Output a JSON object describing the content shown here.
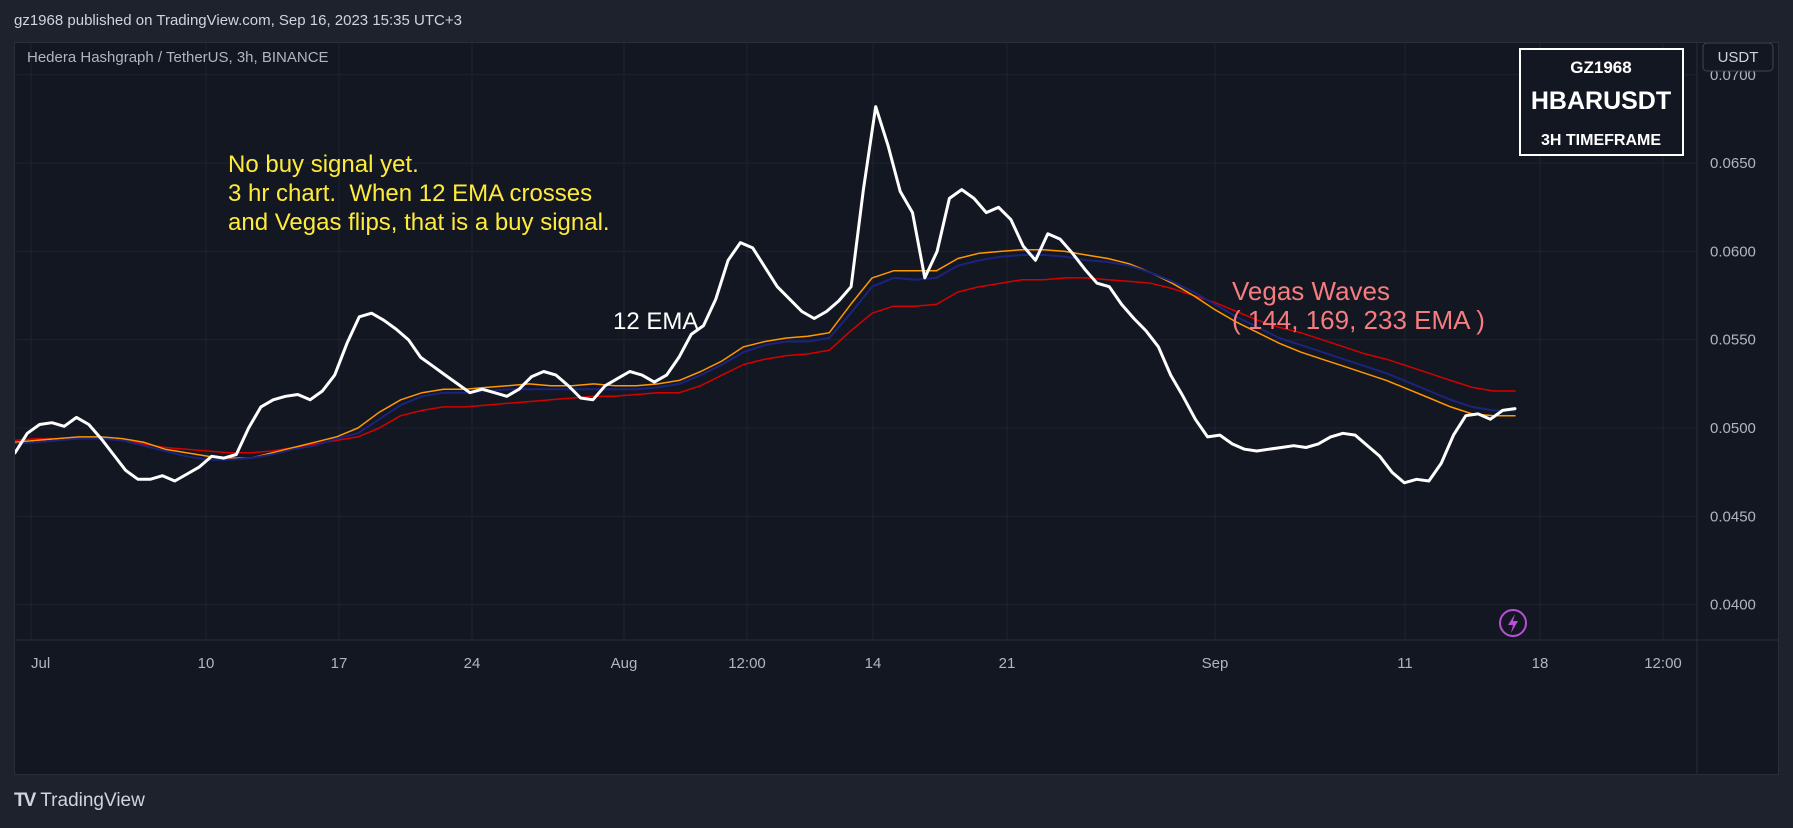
{
  "publisher_line": "gz1968 published on TradingView.com, Sep 16, 2023 15:35 UTC+3",
  "brand": {
    "logo": "TV",
    "name": "TradingView"
  },
  "colors": {
    "background": "#131722",
    "grid": "#1f2330",
    "price": "#ffffff",
    "ema144": "#ff9800",
    "ema169": "#1a237e",
    "ema233": "#d50000",
    "note_yellow": "#ffeb3b",
    "vegas_label": "#f77c80"
  },
  "chart_data": {
    "type": "line",
    "title": "Hedera Hashgraph / TetherUS, 3h, BINANCE",
    "currency_button": "USDT",
    "ylim": [
      0.038,
      0.0718
    ],
    "y_ticks": [
      "0.0700",
      "0.0650",
      "0.0600",
      "0.0550",
      "0.0500",
      "0.0450",
      "0.0400"
    ],
    "y_tick_values": [
      0.07,
      0.065,
      0.06,
      0.055,
      0.05,
      0.045,
      0.04
    ],
    "x_ticks": [
      "Jul",
      "10",
      "17",
      "24",
      "Aug",
      "12:00",
      "14",
      "21",
      "Sep",
      "11",
      "18",
      "12:00"
    ],
    "grid": true,
    "annotation_box": {
      "line1": "GZ1968",
      "line2": "HBARUSDT",
      "line3": "3H TIMEFRAME"
    },
    "notes": {
      "buy_signal": [
        "No buy signal yet.",
        "3 hr chart.  When 12 EMA crosses",
        "and Vegas flips, that is a buy signal."
      ],
      "ema12_label": "12 EMA",
      "vegas_label": [
        "Vegas Waves",
        "( 144, 169, 233 EMA )"
      ]
    },
    "series": [
      {
        "name": "12 EMA",
        "values": [
          0.0486,
          0.0497,
          0.0502,
          0.0503,
          0.0501,
          0.0506,
          0.0502,
          0.0494,
          0.0485,
          0.0476,
          0.0471,
          0.0471,
          0.0473,
          0.047,
          0.0474,
          0.0478,
          0.0484,
          0.0483,
          0.0485,
          0.05,
          0.0512,
          0.0516,
          0.0518,
          0.0519,
          0.0516,
          0.0521,
          0.053,
          0.0548,
          0.0563,
          0.0565,
          0.0561,
          0.0556,
          0.055,
          0.054,
          0.0535,
          0.053,
          0.0525,
          0.052,
          0.0522,
          0.052,
          0.0518,
          0.0522,
          0.0529,
          0.0532,
          0.053,
          0.0524,
          0.0517,
          0.0516,
          0.0524,
          0.0528,
          0.0532,
          0.053,
          0.0526,
          0.053,
          0.054,
          0.0553,
          0.0558,
          0.0573,
          0.0595,
          0.0605,
          0.0602,
          0.0591,
          0.058,
          0.0573,
          0.0566,
          0.0562,
          0.0566,
          0.0572,
          0.058,
          0.0635,
          0.0682,
          0.066,
          0.0634,
          0.0622,
          0.0585,
          0.06,
          0.063,
          0.0635,
          0.063,
          0.0622,
          0.0625,
          0.0618,
          0.0603,
          0.0595,
          0.061,
          0.0607,
          0.0599,
          0.059,
          0.0582,
          0.058,
          0.057,
          0.0562,
          0.0555,
          0.0546,
          0.053,
          0.0518,
          0.0505,
          0.0495,
          0.0496,
          0.0491,
          0.0488,
          0.0487,
          0.0488,
          0.0489,
          0.049,
          0.0489,
          0.0491,
          0.0495,
          0.0497,
          0.0496,
          0.049,
          0.0484,
          0.0475,
          0.0469,
          0.0471,
          0.047,
          0.048,
          0.0496,
          0.0507,
          0.0508,
          0.0505,
          0.051,
          0.0511
        ]
      },
      {
        "name": "144 EMA",
        "values": [
          0.0492,
          0.0493,
          0.0494,
          0.0495,
          0.0495,
          0.0494,
          0.0492,
          0.0488,
          0.0486,
          0.0484,
          0.0483,
          0.0483,
          0.0486,
          0.0489,
          0.0492,
          0.0495,
          0.05,
          0.0509,
          0.0516,
          0.052,
          0.0522,
          0.0522,
          0.0523,
          0.0524,
          0.0525,
          0.0524,
          0.0524,
          0.0525,
          0.0524,
          0.0524,
          0.0525,
          0.0527,
          0.0532,
          0.0538,
          0.0546,
          0.0549,
          0.0551,
          0.0552,
          0.0554,
          0.057,
          0.0585,
          0.0589,
          0.0589,
          0.0589,
          0.0596,
          0.0599,
          0.06,
          0.0601,
          0.0601,
          0.06,
          0.0598,
          0.0596,
          0.0593,
          0.0588,
          0.0582,
          0.0575,
          0.0567,
          0.056,
          0.0554,
          0.0548,
          0.0543,
          0.0539,
          0.0535,
          0.0531,
          0.0527,
          0.0522,
          0.0517,
          0.0512,
          0.0508,
          0.0507,
          0.0507
        ]
      },
      {
        "name": "169 EMA",
        "values": [
          0.0491,
          0.0492,
          0.0493,
          0.0494,
          0.0494,
          0.0493,
          0.049,
          0.0487,
          0.0484,
          0.0482,
          0.0482,
          0.0483,
          0.0485,
          0.0488,
          0.049,
          0.0494,
          0.0497,
          0.0505,
          0.0513,
          0.0518,
          0.052,
          0.052,
          0.0521,
          0.0522,
          0.0522,
          0.0522,
          0.0522,
          0.0522,
          0.0522,
          0.0522,
          0.0523,
          0.0525,
          0.053,
          0.0536,
          0.0543,
          0.0547,
          0.0549,
          0.0549,
          0.0551,
          0.0565,
          0.058,
          0.0585,
          0.0584,
          0.0585,
          0.0592,
          0.0595,
          0.0597,
          0.0598,
          0.0598,
          0.0597,
          0.0595,
          0.0594,
          0.0592,
          0.0588,
          0.0583,
          0.0577,
          0.057,
          0.0563,
          0.0557,
          0.0551,
          0.0547,
          0.0543,
          0.0539,
          0.0535,
          0.0531,
          0.0526,
          0.0521,
          0.0516,
          0.0512,
          0.051,
          0.051
        ]
      },
      {
        "name": "233 EMA",
        "values": [
          0.0493,
          0.0494,
          0.0494,
          0.0495,
          0.0494,
          0.0493,
          0.0491,
          0.0489,
          0.0488,
          0.0487,
          0.0486,
          0.0486,
          0.0487,
          0.0489,
          0.0491,
          0.0493,
          0.0495,
          0.05,
          0.0507,
          0.051,
          0.0512,
          0.0512,
          0.0513,
          0.0514,
          0.0515,
          0.0516,
          0.0517,
          0.0518,
          0.0518,
          0.0519,
          0.052,
          0.052,
          0.0524,
          0.053,
          0.0536,
          0.0539,
          0.0541,
          0.0542,
          0.0544,
          0.0555,
          0.0565,
          0.0569,
          0.0569,
          0.057,
          0.0577,
          0.058,
          0.0582,
          0.0584,
          0.0584,
          0.0585,
          0.0585,
          0.0584,
          0.0583,
          0.0582,
          0.0579,
          0.0575,
          0.0571,
          0.0566,
          0.0561,
          0.0557,
          0.0554,
          0.055,
          0.0546,
          0.0542,
          0.0539,
          0.0535,
          0.0531,
          0.0527,
          0.0523,
          0.0521,
          0.0521
        ]
      }
    ]
  }
}
